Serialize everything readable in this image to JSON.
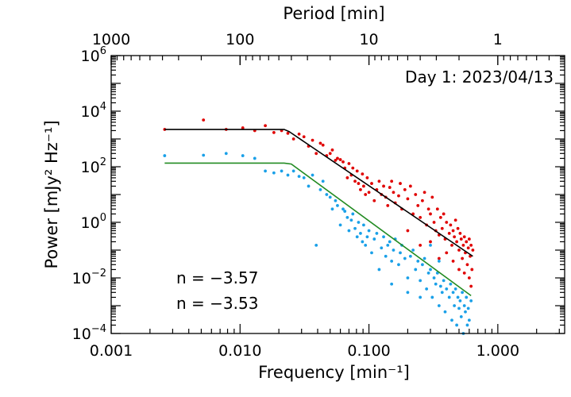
{
  "chart_data": {
    "type": "scatter",
    "title": "Day 1: 2023/04/13",
    "xlabel": "Frequency [min⁻¹]",
    "ylabel": "Power [mJy² Hz⁻¹]",
    "top_label": "Period [min]",
    "x_scale": "log",
    "y_scale": "log",
    "xlim": [
      0.001,
      3.3
    ],
    "ylim": [
      0.0001,
      1000000
    ],
    "x_tick_values": [
      0.001,
      0.01,
      0.1,
      1
    ],
    "x_tick_labels": [
      "0.001",
      "0.010",
      "0.100",
      "1.000"
    ],
    "y_tick_values": [
      0.0001,
      0.01,
      1,
      100,
      10000,
      1000000
    ],
    "y_tick_labels": [
      {
        "base": "10",
        "exp": "−4"
      },
      {
        "base": "10",
        "exp": "−2"
      },
      {
        "base": "10",
        "exp": "0"
      },
      {
        "base": "10",
        "exp": "2"
      },
      {
        "base": "10",
        "exp": "4"
      },
      {
        "base": "10",
        "exp": "6"
      }
    ],
    "top_tick_values": [
      1000,
      100,
      10,
      1
    ],
    "top_tick_labels": [
      "1000",
      "100",
      "10",
      "1"
    ],
    "grid": false,
    "series": [
      {
        "color": "#e00000",
        "style": "points",
        "points": [
          [
            0.0026,
            2200
          ],
          [
            0.0052,
            4800
          ],
          [
            0.0078,
            2200
          ],
          [
            0.0105,
            2500
          ],
          [
            0.013,
            2000
          ],
          [
            0.0157,
            3000
          ],
          [
            0.0183,
            1700
          ],
          [
            0.021,
            2000
          ],
          [
            0.0235,
            1600
          ],
          [
            0.026,
            1000
          ],
          [
            0.0287,
            1500
          ],
          [
            0.0313,
            1200
          ],
          [
            0.034,
            550
          ],
          [
            0.0365,
            900
          ],
          [
            0.039,
            300
          ],
          [
            0.042,
            700
          ],
          [
            0.044,
            600
          ],
          [
            0.047,
            250
          ],
          [
            0.05,
            300
          ],
          [
            0.052,
            400
          ],
          [
            0.055,
            170
          ],
          [
            0.057,
            200
          ],
          [
            0.06,
            180
          ],
          [
            0.063,
            150
          ],
          [
            0.065,
            90
          ],
          [
            0.068,
            40
          ],
          [
            0.07,
            130
          ],
          [
            0.073,
            50
          ],
          [
            0.075,
            90
          ],
          [
            0.078,
            30
          ],
          [
            0.081,
            70
          ],
          [
            0.083,
            25
          ],
          [
            0.086,
            15
          ],
          [
            0.089,
            55
          ],
          [
            0.091,
            20
          ],
          [
            0.094,
            10
          ],
          [
            0.097,
            40
          ],
          [
            0.1,
            12
          ],
          [
            0.105,
            25
          ],
          [
            0.11,
            6
          ],
          [
            0.115,
            15
          ],
          [
            0.12,
            30
          ],
          [
            0.125,
            10
          ],
          [
            0.13,
            20
          ],
          [
            0.135,
            8
          ],
          [
            0.14,
            4
          ],
          [
            0.145,
            18
          ],
          [
            0.15,
            30
          ],
          [
            0.155,
            12
          ],
          [
            0.16,
            5
          ],
          [
            0.17,
            9
          ],
          [
            0.175,
            25
          ],
          [
            0.18,
            3
          ],
          [
            0.19,
            15
          ],
          [
            0.2,
            7
          ],
          [
            0.21,
            20
          ],
          [
            0.22,
            2
          ],
          [
            0.23,
            10
          ],
          [
            0.24,
            4
          ],
          [
            0.25,
            1.5
          ],
          [
            0.26,
            6
          ],
          [
            0.27,
            12
          ],
          [
            0.28,
            0.8
          ],
          [
            0.29,
            3
          ],
          [
            0.3,
            2
          ],
          [
            0.31,
            8
          ],
          [
            0.32,
            1
          ],
          [
            0.33,
            0.5
          ],
          [
            0.34,
            3
          ],
          [
            0.35,
            0.35
          ],
          [
            0.36,
            1.5
          ],
          [
            0.37,
            0.6
          ],
          [
            0.38,
            2
          ],
          [
            0.39,
            0.25
          ],
          [
            0.4,
            1
          ],
          [
            0.42,
            0.4
          ],
          [
            0.43,
            0.8
          ],
          [
            0.44,
            0.15
          ],
          [
            0.45,
            0.5
          ],
          [
            0.46,
            0.3
          ],
          [
            0.47,
            1.2
          ],
          [
            0.48,
            0.2
          ],
          [
            0.49,
            0.6
          ],
          [
            0.5,
            0.1
          ],
          [
            0.51,
            0.4
          ],
          [
            0.52,
            0.25
          ],
          [
            0.53,
            0.05
          ],
          [
            0.54,
            0.15
          ],
          [
            0.55,
            0.3
          ],
          [
            0.56,
            0.08
          ],
          [
            0.57,
            0.2
          ],
          [
            0.58,
            0.03
          ],
          [
            0.59,
            0.12
          ],
          [
            0.6,
            0.25
          ],
          [
            0.61,
            0.06
          ],
          [
            0.62,
            0.15
          ],
          [
            0.63,
            0.02
          ],
          [
            0.64,
            0.1
          ],
          [
            0.2,
            0.5
          ],
          [
            0.25,
            0.15
          ],
          [
            0.3,
            0.2
          ],
          [
            0.35,
            0.05
          ],
          [
            0.4,
            0.08
          ],
          [
            0.45,
            0.04
          ],
          [
            0.5,
            0.02
          ],
          [
            0.55,
            0.015
          ],
          [
            0.6,
            0.01
          ],
          [
            0.62,
            0.005
          ]
        ]
      },
      {
        "color": "#1aa0e8",
        "style": "points",
        "points": [
          [
            0.0026,
            250
          ],
          [
            0.0052,
            260
          ],
          [
            0.0078,
            300
          ],
          [
            0.0105,
            250
          ],
          [
            0.013,
            200
          ],
          [
            0.0157,
            70
          ],
          [
            0.0183,
            60
          ],
          [
            0.021,
            70
          ],
          [
            0.0235,
            50
          ],
          [
            0.026,
            70
          ],
          [
            0.0287,
            45
          ],
          [
            0.0313,
            40
          ],
          [
            0.034,
            20
          ],
          [
            0.0365,
            50
          ],
          [
            0.039,
            0.15
          ],
          [
            0.042,
            15
          ],
          [
            0.044,
            30
          ],
          [
            0.047,
            10
          ],
          [
            0.05,
            8
          ],
          [
            0.052,
            3
          ],
          [
            0.055,
            6
          ],
          [
            0.057,
            4
          ],
          [
            0.06,
            0.8
          ],
          [
            0.063,
            3
          ],
          [
            0.065,
            2.5
          ],
          [
            0.068,
            1.5
          ],
          [
            0.07,
            0.5
          ],
          [
            0.073,
            1.2
          ],
          [
            0.075,
            2
          ],
          [
            0.078,
            0.6
          ],
          [
            0.081,
            0.3
          ],
          [
            0.083,
            1
          ],
          [
            0.086,
            0.4
          ],
          [
            0.089,
            0.2
          ],
          [
            0.091,
            0.8
          ],
          [
            0.094,
            0.15
          ],
          [
            0.097,
            0.3
          ],
          [
            0.1,
            0.5
          ],
          [
            0.105,
            0.08
          ],
          [
            0.11,
            0.25
          ],
          [
            0.115,
            0.4
          ],
          [
            0.12,
            0.02
          ],
          [
            0.125,
            0.12
          ],
          [
            0.13,
            0.3
          ],
          [
            0.135,
            0.06
          ],
          [
            0.14,
            0.15
          ],
          [
            0.145,
            0.2
          ],
          [
            0.15,
            0.04
          ],
          [
            0.155,
            0.1
          ],
          [
            0.16,
            0.25
          ],
          [
            0.17,
            0.03
          ],
          [
            0.175,
            0.08
          ],
          [
            0.18,
            0.15
          ],
          [
            0.19,
            0.05
          ],
          [
            0.2,
            0.01
          ],
          [
            0.21,
            0.06
          ],
          [
            0.22,
            0.1
          ],
          [
            0.23,
            0.02
          ],
          [
            0.24,
            0.04
          ],
          [
            0.25,
            0.008
          ],
          [
            0.26,
            0.03
          ],
          [
            0.27,
            0.05
          ],
          [
            0.28,
            0.004
          ],
          [
            0.29,
            0.015
          ],
          [
            0.3,
            0.02
          ],
          [
            0.31,
            0.002
          ],
          [
            0.32,
            0.01
          ],
          [
            0.33,
            0.006
          ],
          [
            0.34,
            0.015
          ],
          [
            0.35,
            0.001
          ],
          [
            0.36,
            0.005
          ],
          [
            0.37,
            0.003
          ],
          [
            0.38,
            0.008
          ],
          [
            0.39,
            0.0006
          ],
          [
            0.4,
            0.004
          ],
          [
            0.42,
            0.002
          ],
          [
            0.43,
            0.006
          ],
          [
            0.44,
            0.0003
          ],
          [
            0.45,
            0.003
          ],
          [
            0.46,
            0.001
          ],
          [
            0.47,
            0.004
          ],
          [
            0.48,
            0.0002
          ],
          [
            0.49,
            0.002
          ],
          [
            0.5,
            0.0008
          ],
          [
            0.51,
            0.0015
          ],
          [
            0.52,
            0.0004
          ],
          [
            0.53,
            0.003
          ],
          [
            0.54,
            0.0001
          ],
          [
            0.55,
            0.001
          ],
          [
            0.56,
            0.0006
          ],
          [
            0.57,
            0.002
          ],
          [
            0.58,
            0.0002
          ],
          [
            0.59,
            0.0008
          ],
          [
            0.6,
            0.0003
          ],
          [
            0.62,
            0.0015
          ],
          [
            0.15,
            0.006
          ],
          [
            0.2,
            0.003
          ],
          [
            0.25,
            0.002
          ],
          [
            0.3,
            0.15
          ],
          [
            0.35,
            0.04
          ]
        ]
      },
      {
        "color": "#000000",
        "style": "line",
        "points": [
          [
            0.0026,
            2200
          ],
          [
            0.022,
            2200
          ],
          [
            0.024,
            1850
          ],
          [
            0.64,
            0.06
          ]
        ]
      },
      {
        "color": "#228b22",
        "style": "line",
        "points": [
          [
            0.0026,
            135
          ],
          [
            0.022,
            135
          ],
          [
            0.025,
            125
          ],
          [
            0.62,
            0.0023
          ]
        ]
      }
    ],
    "annotations": [
      {
        "text": "n = −3.57",
        "color": "#000000"
      },
      {
        "text": "n = −3.53",
        "color": "#228b22"
      }
    ]
  }
}
